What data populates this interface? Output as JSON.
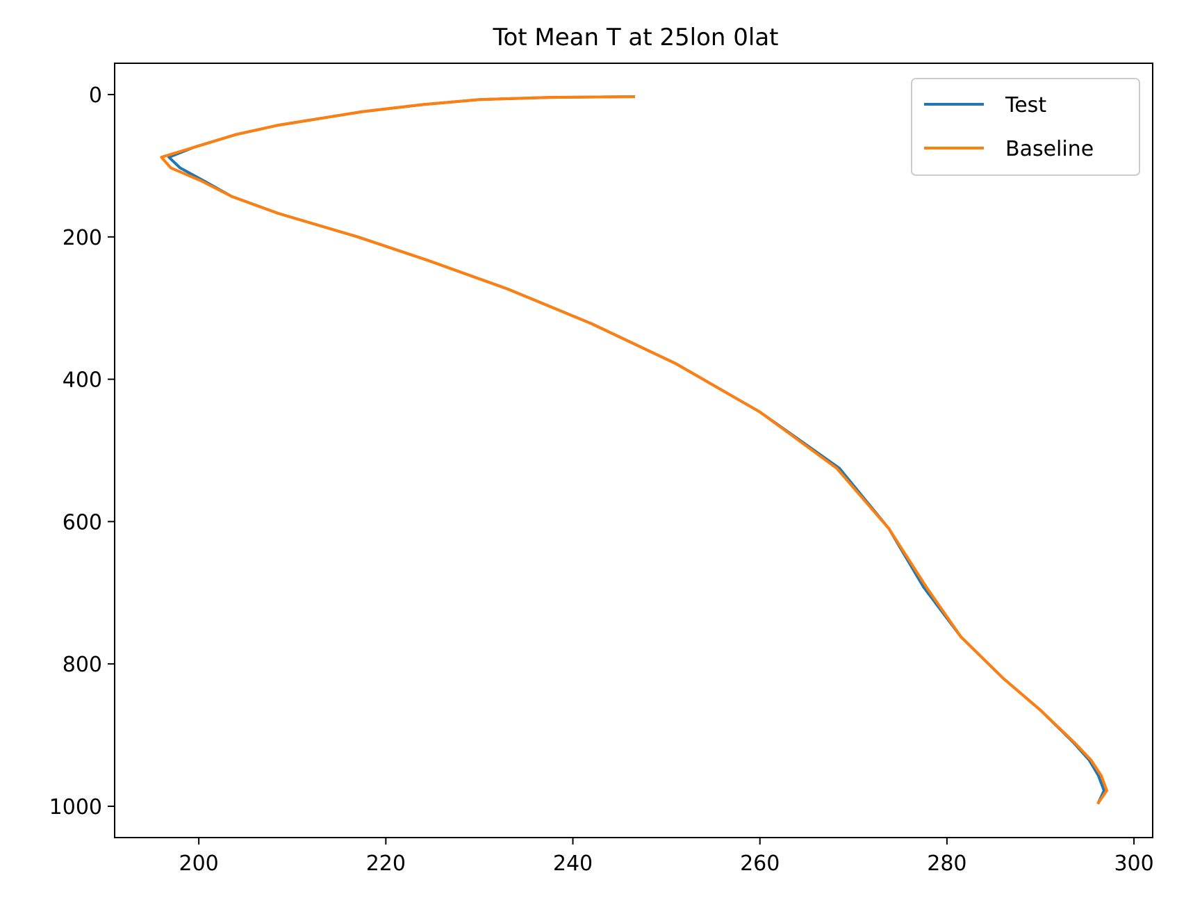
{
  "chart_data": {
    "type": "line",
    "title": "Tot Mean T at 25lon 0lat",
    "xlabel": "",
    "ylabel": "",
    "xlim": [
      191,
      302
    ],
    "ylim": [
      1044,
      -44
    ],
    "y_inverted": true,
    "xticks": [
      200,
      220,
      240,
      260,
      280,
      300
    ],
    "yticks": [
      0,
      200,
      400,
      600,
      800,
      1000
    ],
    "grid": false,
    "legend_position": "top-right",
    "series": [
      {
        "name": "Test",
        "color": "#1f77b4",
        "x": [
          246.5,
          237.5,
          230.0,
          224.0,
          217.5,
          208.5,
          204.0,
          199.5,
          196.8,
          198.0,
          200.5,
          203.5,
          208.5,
          217.0,
          224.5,
          233.0,
          242.0,
          251.0,
          260.0,
          268.5,
          273.8,
          277.5,
          281.5,
          286.0,
          290.0,
          293.5,
          295.2,
          296.2,
          296.8,
          296.2
        ],
        "y": [
          3,
          4,
          7,
          14,
          24,
          43,
          56,
          74,
          88,
          103,
          121,
          143,
          167,
          200,
          233,
          273,
          322,
          378,
          446,
          525,
          610,
          692,
          762,
          820,
          865,
          910,
          935,
          957,
          978,
          995
        ]
      },
      {
        "name": "Baseline",
        "color": "#ff7f0e",
        "x": [
          246.5,
          237.5,
          230.0,
          224.0,
          217.5,
          208.5,
          204.0,
          199.5,
          196.0,
          197.0,
          200.2,
          203.5,
          208.5,
          217.0,
          224.5,
          233.0,
          242.0,
          251.0,
          260.0,
          268.2,
          273.8,
          277.8,
          281.5,
          286.0,
          290.0,
          293.6,
          295.4,
          296.5,
          297.1,
          296.2
        ],
        "y": [
          3,
          4,
          7,
          14,
          24,
          43,
          56,
          74,
          88,
          103,
          121,
          143,
          167,
          200,
          233,
          273,
          322,
          378,
          446,
          525,
          610,
          692,
          762,
          820,
          865,
          910,
          935,
          957,
          978,
          995
        ]
      }
    ]
  }
}
